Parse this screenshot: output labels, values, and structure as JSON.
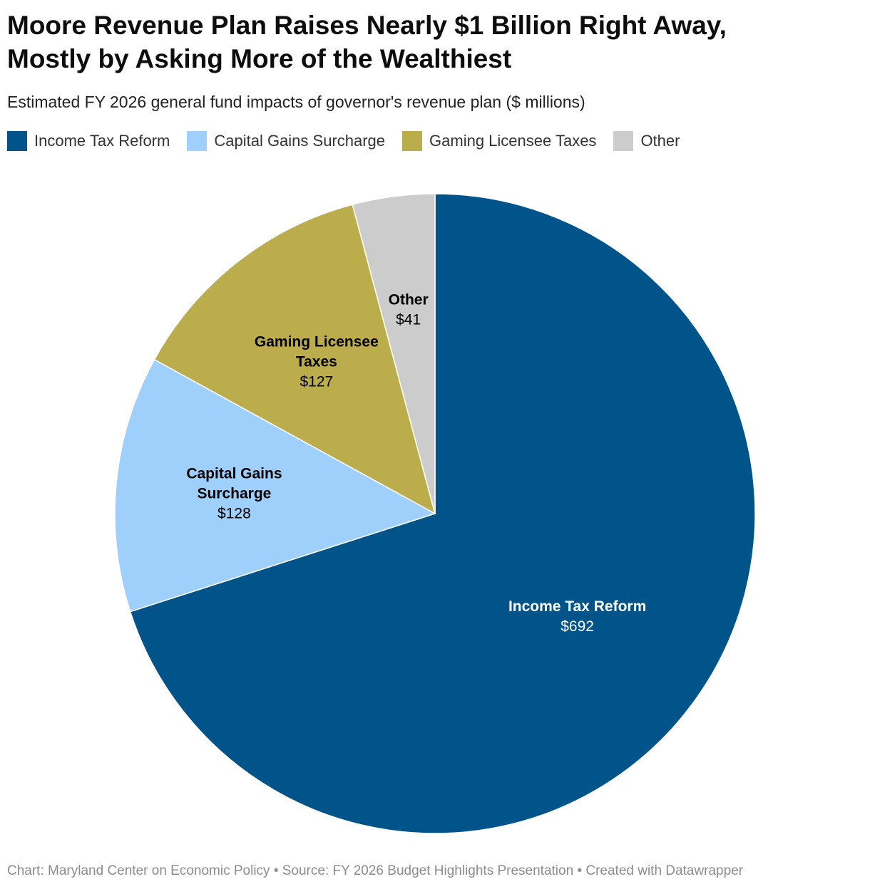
{
  "title_lines": [
    "Moore Revenue Plan Raises Nearly $1 Billion Right Away,",
    "Mostly by Asking More of the Wealthiest"
  ],
  "subtitle": "Estimated FY 2026 general fund impacts of governor's revenue plan ($ millions)",
  "legend": [
    {
      "label": "Income Tax Reform",
      "color": "#00548a"
    },
    {
      "label": "Capital Gains Surcharge",
      "color": "#9fd0fc"
    },
    {
      "label": "Gaming Licensee Taxes",
      "color": "#bcad4c"
    },
    {
      "label": "Other",
      "color": "#cccccc"
    }
  ],
  "chart_data": {
    "type": "pie",
    "title": "Moore Revenue Plan Raises Nearly $1 Billion Right Away, Mostly by Asking More of the Wealthiest",
    "unit": "$ millions",
    "slices": [
      {
        "label": "Income Tax Reform",
        "label_lines": [
          "Income Tax Reform"
        ],
        "value": 692,
        "value_label": "$692",
        "color": "#00548a",
        "text_color": "#ffffff"
      },
      {
        "label": "Capital Gains Surcharge",
        "label_lines": [
          "Capital Gains",
          "Surcharge"
        ],
        "value": 128,
        "value_label": "$128",
        "color": "#9fd0fc",
        "text_color": "#000000"
      },
      {
        "label": "Gaming Licensee Taxes",
        "label_lines": [
          "Gaming Licensee",
          "Taxes"
        ],
        "value": 127,
        "value_label": "$127",
        "color": "#bcad4c",
        "text_color": "#000000"
      },
      {
        "label": "Other",
        "label_lines": [
          "Other"
        ],
        "value": 41,
        "value_label": "$41",
        "color": "#cccccc",
        "text_color": "#000000"
      }
    ]
  },
  "footer": "Chart: Maryland Center on Economic Policy • Source: FY 2026 Budget Highlights Presentation • Created with Datawrapper"
}
